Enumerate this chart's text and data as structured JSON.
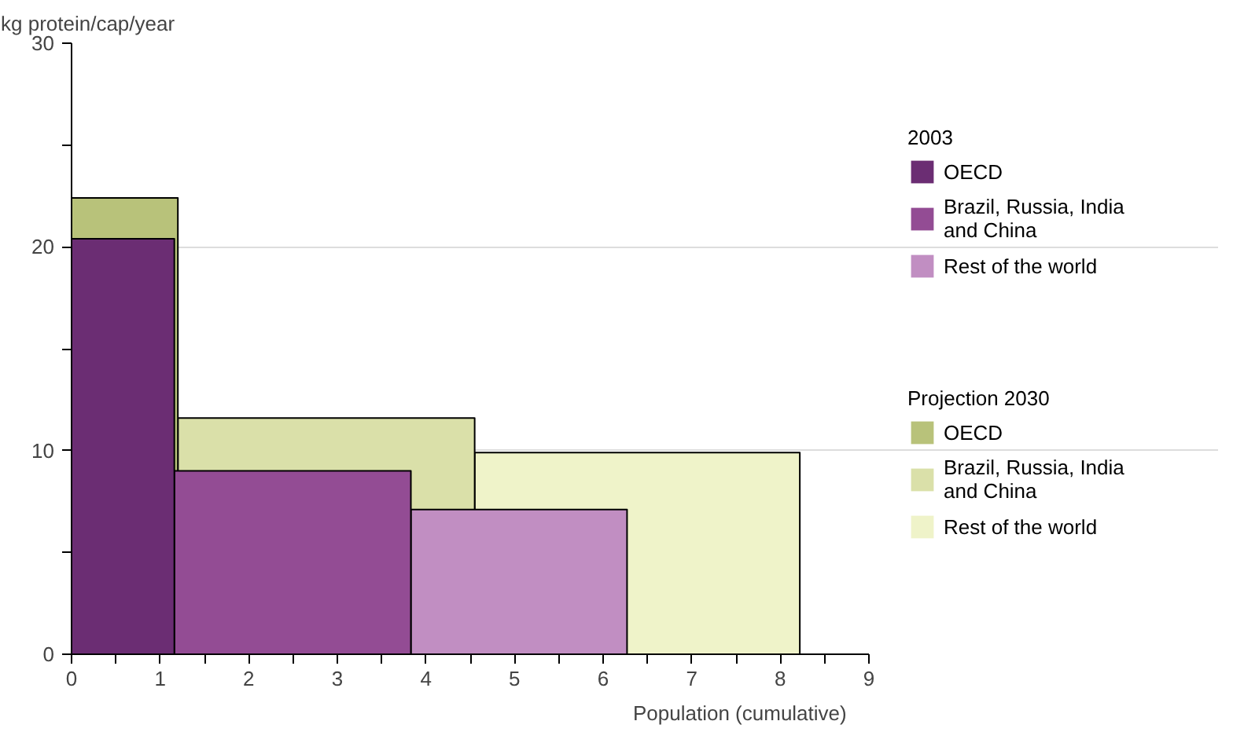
{
  "chart_data": {
    "type": "area",
    "ylabel": "kg protein/cap/year",
    "xlabel": "Population (cumulative)",
    "annotations": [
      "2003",
      "Projection 2030"
    ],
    "series": [
      {
        "name": "OECD",
        "x": [
          0,
          1.16
        ],
        "values": [
          20.4,
          20.4
        ],
        "color": "#6b2d73"
      },
      {
        "name": "Brazil, Russia, India and China",
        "x": [
          1.16,
          3.83
        ],
        "values": [
          9.0,
          9.0
        ],
        "color": "#934c94"
      },
      {
        "name": "Rest of the world",
        "x": [
          3.83,
          6.27
        ],
        "values": [
          7.1,
          7.1
        ],
        "color": "#c18ec2"
      },
      {
        "name": "OECD",
        "x": [
          0,
          1.2
        ],
        "values": [
          22.4,
          22.4
        ],
        "color": "#b8c27a"
      },
      {
        "name": "Brazil, Russia, India and China",
        "x": [
          1.2,
          4.55
        ],
        "values": [
          11.6,
          11.6
        ],
        "color": "#dae0a9"
      },
      {
        "name": "Rest of the world",
        "x": [
          4.55,
          8.22
        ],
        "values": [
          9.9,
          9.9
        ],
        "color": "#eff3c9"
      }
    ],
    "xlim": [
      0,
      9
    ],
    "ylim": [
      0,
      30
    ],
    "xticks": [
      0,
      {
        "value": 0.5,
        "label": null
      },
      1,
      {
        "value": 1.5,
        "label": null
      },
      2,
      {
        "value": 2.5,
        "label": null
      },
      3,
      {
        "value": 3.5,
        "label": null
      },
      4,
      {
        "value": 4.5,
        "label": null
      },
      5,
      {
        "value": 5.5,
        "label": null
      },
      6,
      {
        "value": 6.5,
        "label": null
      },
      7,
      {
        "value": 7.5,
        "label": null
      },
      8,
      {
        "value": 8.5,
        "label": null
      },
      9
    ],
    "yticks": [
      0,
      {
        "value": 5,
        "label": null
      },
      10,
      {
        "value": 15,
        "label": null
      },
      20,
      {
        "value": 25,
        "label": null
      },
      30
    ],
    "grid": "y",
    "legend": "right"
  }
}
